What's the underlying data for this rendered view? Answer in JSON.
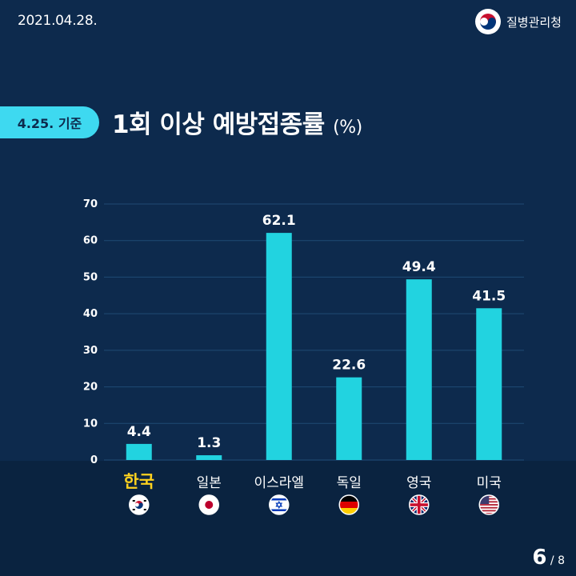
{
  "header": {
    "date": "2021.04.28.",
    "org_name": "질병관리청"
  },
  "tag_label": "4.25. 기준",
  "title_main": "1회 이상 예방접종률",
  "title_unit": "(%)",
  "pagination": {
    "current": "6",
    "total": "/ 8"
  },
  "colors": {
    "background": "#0d2a4d",
    "bar": "#22d3e0",
    "highlight_label": "#ffd21f",
    "tag": "#3ed9f0"
  },
  "chart_data": {
    "type": "bar",
    "title": "1회 이상 예방접종률 (%)",
    "categories": [
      "한국",
      "일본",
      "이스라엘",
      "독일",
      "영국",
      "미국"
    ],
    "values": [
      4.4,
      1.3,
      62.1,
      22.6,
      49.4,
      41.5
    ],
    "value_labels": [
      "4.4",
      "1.3",
      "62.1",
      "22.6",
      "49.4",
      "41.5"
    ],
    "highlight_category": "한국",
    "flags": [
      "korea-flag-icon",
      "japan-flag-icon",
      "israel-flag-icon",
      "germany-flag-icon",
      "uk-flag-icon",
      "usa-flag-icon"
    ],
    "yticks": [
      "0",
      "10",
      "20",
      "30",
      "40",
      "50",
      "60",
      "70"
    ],
    "ylim": [
      0,
      70
    ],
    "xlabel": "",
    "ylabel": "",
    "grid": true
  }
}
